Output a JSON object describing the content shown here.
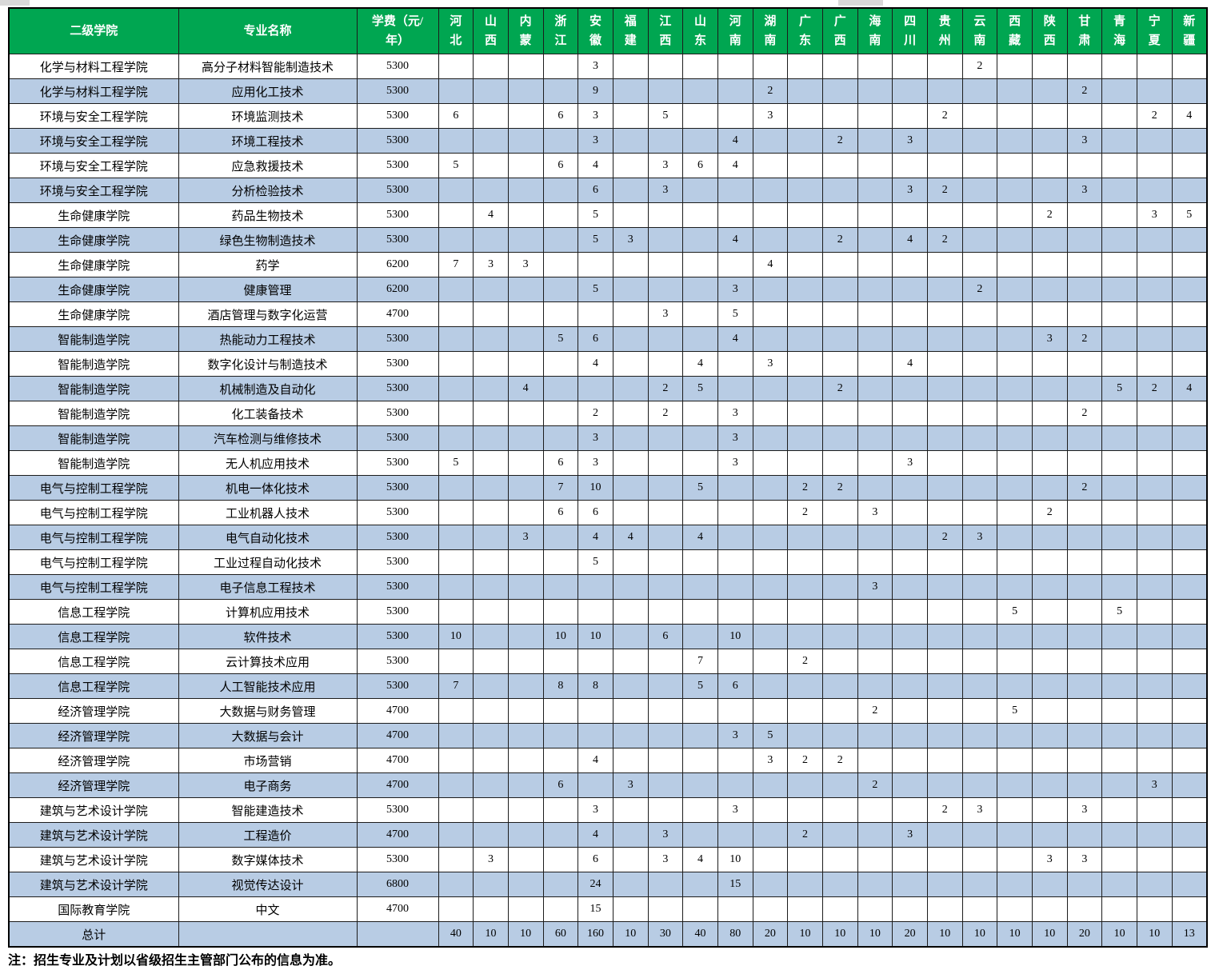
{
  "table": {
    "header": {
      "college": "二级学院",
      "major": "专业名称",
      "tuition": "学费（元/\n年）",
      "provinces": [
        "河北",
        "山西",
        "内蒙",
        "浙江",
        "安徽",
        "福建",
        "江西",
        "山东",
        "河南",
        "湖南",
        "广东",
        "广西",
        "海南",
        "四川",
        "贵州",
        "云南",
        "西藏",
        "陕西",
        "甘肃",
        "青海",
        "宁夏",
        "新疆"
      ]
    },
    "rows": [
      {
        "college": "化学与材料工程学院",
        "major": "高分子材料智能制造技术",
        "tuition": "5300",
        "values": [
          "",
          "",
          "",
          "",
          "3",
          "",
          "",
          "",
          "",
          "",
          "",
          "",
          "",
          "",
          "",
          "2",
          "",
          "",
          "",
          "",
          "",
          ""
        ]
      },
      {
        "college": "化学与材料工程学院",
        "major": "应用化工技术",
        "tuition": "5300",
        "values": [
          "",
          "",
          "",
          "",
          "9",
          "",
          "",
          "",
          "",
          "2",
          "",
          "",
          "",
          "",
          "",
          "",
          "",
          "",
          "2",
          "",
          "",
          ""
        ]
      },
      {
        "college": "环境与安全工程学院",
        "major": "环境监测技术",
        "tuition": "5300",
        "values": [
          "6",
          "",
          "",
          "6",
          "3",
          "",
          "5",
          "",
          "",
          "3",
          "",
          "",
          "",
          "",
          "2",
          "",
          "",
          "",
          "",
          "",
          "2",
          "4"
        ]
      },
      {
        "college": "环境与安全工程学院",
        "major": "环境工程技术",
        "tuition": "5300",
        "values": [
          "",
          "",
          "",
          "",
          "3",
          "",
          "",
          "",
          "4",
          "",
          "",
          "2",
          "",
          "3",
          "",
          "",
          "",
          "",
          "3",
          "",
          "",
          ""
        ]
      },
      {
        "college": "环境与安全工程学院",
        "major": "应急救援技术",
        "tuition": "5300",
        "values": [
          "5",
          "",
          "",
          "6",
          "4",
          "",
          "3",
          "6",
          "4",
          "",
          "",
          "",
          "",
          "",
          "",
          "",
          "",
          "",
          "",
          "",
          "",
          ""
        ]
      },
      {
        "college": "环境与安全工程学院",
        "major": "分析检验技术",
        "tuition": "5300",
        "values": [
          "",
          "",
          "",
          "",
          "6",
          "",
          "3",
          "",
          "",
          "",
          "",
          "",
          "",
          "3",
          "2",
          "",
          "",
          "",
          "3",
          "",
          "",
          ""
        ]
      },
      {
        "college": "生命健康学院",
        "major": "药品生物技术",
        "tuition": "5300",
        "values": [
          "",
          "4",
          "",
          "",
          "5",
          "",
          "",
          "",
          "",
          "",
          "",
          "",
          "",
          "",
          "",
          "",
          "",
          "2",
          "",
          "",
          "3",
          "5"
        ]
      },
      {
        "college": "生命健康学院",
        "major": "绿色生物制造技术",
        "tuition": "5300",
        "values": [
          "",
          "",
          "",
          "",
          "5",
          "3",
          "",
          "",
          "4",
          "",
          "",
          "2",
          "",
          "4",
          "2",
          "",
          "",
          "",
          "",
          "",
          "",
          ""
        ]
      },
      {
        "college": "生命健康学院",
        "major": "药学",
        "tuition": "6200",
        "values": [
          "7",
          "3",
          "3",
          "",
          "",
          "",
          "",
          "",
          "",
          "4",
          "",
          "",
          "",
          "",
          "",
          "",
          "",
          "",
          "",
          "",
          "",
          ""
        ]
      },
      {
        "college": "生命健康学院",
        "major": "健康管理",
        "tuition": "6200",
        "values": [
          "",
          "",
          "",
          "",
          "5",
          "",
          "",
          "",
          "3",
          "",
          "",
          "",
          "",
          "",
          "",
          "2",
          "",
          "",
          "",
          "",
          "",
          ""
        ]
      },
      {
        "college": "生命健康学院",
        "major": "酒店管理与数字化运营",
        "tuition": "4700",
        "values": [
          "",
          "",
          "",
          "",
          "",
          "",
          "3",
          "",
          "5",
          "",
          "",
          "",
          "",
          "",
          "",
          "",
          "",
          "",
          "",
          "",
          "",
          ""
        ]
      },
      {
        "college": "智能制造学院",
        "major": "热能动力工程技术",
        "tuition": "5300",
        "values": [
          "",
          "",
          "",
          "5",
          "6",
          "",
          "",
          "",
          "4",
          "",
          "",
          "",
          "",
          "",
          "",
          "",
          "",
          "3",
          "2",
          "",
          "",
          ""
        ]
      },
      {
        "college": "智能制造学院",
        "major": "数字化设计与制造技术",
        "tuition": "5300",
        "values": [
          "",
          "",
          "",
          "",
          "4",
          "",
          "",
          "4",
          "",
          "3",
          "",
          "",
          "",
          "4",
          "",
          "",
          "",
          "",
          "",
          "",
          "",
          ""
        ]
      },
      {
        "college": "智能制造学院",
        "major": "机械制造及自动化",
        "tuition": "5300",
        "values": [
          "",
          "",
          "4",
          "",
          "",
          "",
          "2",
          "5",
          "",
          "",
          "",
          "2",
          "",
          "",
          "",
          "",
          "",
          "",
          "",
          "5",
          "2",
          "4"
        ]
      },
      {
        "college": "智能制造学院",
        "major": "化工装备技术",
        "tuition": "5300",
        "values": [
          "",
          "",
          "",
          "",
          "2",
          "",
          "2",
          "",
          "3",
          "",
          "",
          "",
          "",
          "",
          "",
          "",
          "",
          "",
          "2",
          "",
          "",
          ""
        ]
      },
      {
        "college": "智能制造学院",
        "major": "汽车检测与维修技术",
        "tuition": "5300",
        "values": [
          "",
          "",
          "",
          "",
          "3",
          "",
          "",
          "",
          "3",
          "",
          "",
          "",
          "",
          "",
          "",
          "",
          "",
          "",
          "",
          "",
          "",
          ""
        ]
      },
      {
        "college": "智能制造学院",
        "major": "无人机应用技术",
        "tuition": "5300",
        "values": [
          "5",
          "",
          "",
          "6",
          "3",
          "",
          "",
          "",
          "3",
          "",
          "",
          "",
          "",
          "3",
          "",
          "",
          "",
          "",
          "",
          "",
          "",
          ""
        ]
      },
      {
        "college": "电气与控制工程学院",
        "major": "机电一体化技术",
        "tuition": "5300",
        "values": [
          "",
          "",
          "",
          "7",
          "10",
          "",
          "",
          "5",
          "",
          "",
          "2",
          "2",
          "",
          "",
          "",
          "",
          "",
          "",
          "2",
          "",
          "",
          ""
        ]
      },
      {
        "college": "电气与控制工程学院",
        "major": "工业机器人技术",
        "tuition": "5300",
        "values": [
          "",
          "",
          "",
          "6",
          "6",
          "",
          "",
          "",
          "",
          "",
          "2",
          "",
          "3",
          "",
          "",
          "",
          "",
          "2",
          "",
          "",
          "",
          ""
        ]
      },
      {
        "college": "电气与控制工程学院",
        "major": "电气自动化技术",
        "tuition": "5300",
        "values": [
          "",
          "",
          "3",
          "",
          "4",
          "4",
          "",
          "4",
          "",
          "",
          "",
          "",
          "",
          "",
          "2",
          "3",
          "",
          "",
          "",
          "",
          "",
          ""
        ]
      },
      {
        "college": "电气与控制工程学院",
        "major": "工业过程自动化技术",
        "tuition": "5300",
        "values": [
          "",
          "",
          "",
          "",
          "5",
          "",
          "",
          "",
          "",
          "",
          "",
          "",
          "",
          "",
          "",
          "",
          "",
          "",
          "",
          "",
          "",
          ""
        ]
      },
      {
        "college": "电气与控制工程学院",
        "major": "电子信息工程技术",
        "tuition": "5300",
        "values": [
          "",
          "",
          "",
          "",
          "",
          "",
          "",
          "",
          "",
          "",
          "",
          "",
          "3",
          "",
          "",
          "",
          "",
          "",
          "",
          "",
          "",
          ""
        ]
      },
      {
        "college": "信息工程学院",
        "major": "计算机应用技术",
        "tuition": "5300",
        "values": [
          "",
          "",
          "",
          "",
          "",
          "",
          "",
          "",
          "",
          "",
          "",
          "",
          "",
          "",
          "",
          "",
          "5",
          "",
          "",
          "5",
          "",
          ""
        ]
      },
      {
        "college": "信息工程学院",
        "major": "软件技术",
        "tuition": "5300",
        "values": [
          "10",
          "",
          "",
          "10",
          "10",
          "",
          "6",
          "",
          "10",
          "",
          "",
          "",
          "",
          "",
          "",
          "",
          "",
          "",
          "",
          "",
          "",
          ""
        ]
      },
      {
        "college": "信息工程学院",
        "major": "云计算技术应用",
        "tuition": "5300",
        "values": [
          "",
          "",
          "",
          "",
          "",
          "",
          "",
          "7",
          "",
          "",
          "2",
          "",
          "",
          "",
          "",
          "",
          "",
          "",
          "",
          "",
          "",
          ""
        ]
      },
      {
        "college": "信息工程学院",
        "major": "人工智能技术应用",
        "tuition": "5300",
        "values": [
          "7",
          "",
          "",
          "8",
          "8",
          "",
          "",
          "5",
          "6",
          "",
          "",
          "",
          "",
          "",
          "",
          "",
          "",
          "",
          "",
          "",
          "",
          ""
        ]
      },
      {
        "college": "经济管理学院",
        "major": "大数据与财务管理",
        "tuition": "4700",
        "values": [
          "",
          "",
          "",
          "",
          "",
          "",
          "",
          "",
          "",
          "",
          "",
          "",
          "2",
          "",
          "",
          "",
          "5",
          "",
          "",
          "",
          "",
          ""
        ]
      },
      {
        "college": "经济管理学院",
        "major": "大数据与会计",
        "tuition": "4700",
        "values": [
          "",
          "",
          "",
          "",
          "",
          "",
          "",
          "",
          "3",
          "5",
          "",
          "",
          "",
          "",
          "",
          "",
          "",
          "",
          "",
          "",
          "",
          ""
        ]
      },
      {
        "college": "经济管理学院",
        "major": "市场营销",
        "tuition": "4700",
        "values": [
          "",
          "",
          "",
          "",
          "4",
          "",
          "",
          "",
          "",
          "3",
          "2",
          "2",
          "",
          "",
          "",
          "",
          "",
          "",
          "",
          "",
          "",
          ""
        ]
      },
      {
        "college": "经济管理学院",
        "major": "电子商务",
        "tuition": "4700",
        "values": [
          "",
          "",
          "",
          "6",
          "",
          "3",
          "",
          "",
          "",
          "",
          "",
          "",
          "2",
          "",
          "",
          "",
          "",
          "",
          "",
          "",
          "3",
          ""
        ]
      },
      {
        "college": "建筑与艺术设计学院",
        "major": "智能建造技术",
        "tuition": "5300",
        "values": [
          "",
          "",
          "",
          "",
          "3",
          "",
          "",
          "",
          "3",
          "",
          "",
          "",
          "",
          "",
          "2",
          "3",
          "",
          "",
          "3",
          "",
          "",
          ""
        ]
      },
      {
        "college": "建筑与艺术设计学院",
        "major": "工程造价",
        "tuition": "4700",
        "values": [
          "",
          "",
          "",
          "",
          "4",
          "",
          "3",
          "",
          "",
          "",
          "2",
          "",
          "",
          "3",
          "",
          "",
          "",
          "",
          "",
          "",
          "",
          ""
        ]
      },
      {
        "college": "建筑与艺术设计学院",
        "major": "数字媒体技术",
        "tuition": "5300",
        "values": [
          "",
          "3",
          "",
          "",
          "6",
          "",
          "3",
          "4",
          "10",
          "",
          "",
          "",
          "",
          "",
          "",
          "",
          "",
          "3",
          "3",
          "",
          "",
          ""
        ]
      },
      {
        "college": "建筑与艺术设计学院",
        "major": "视觉传达设计",
        "tuition": "6800",
        "values": [
          "",
          "",
          "",
          "",
          "24",
          "",
          "",
          "",
          "15",
          "",
          "",
          "",
          "",
          "",
          "",
          "",
          "",
          "",
          "",
          "",
          "",
          ""
        ]
      },
      {
        "college": "国际教育学院",
        "major": "中文",
        "tuition": "4700",
        "values": [
          "",
          "",
          "",
          "",
          "15",
          "",
          "",
          "",
          "",
          "",
          "",
          "",
          "",
          "",
          "",
          "",
          "",
          "",
          "",
          "",
          "",
          ""
        ]
      }
    ],
    "total": {
      "label": "总计",
      "values": [
        "40",
        "10",
        "10",
        "60",
        "160",
        "10",
        "30",
        "40",
        "80",
        "20",
        "10",
        "10",
        "10",
        "20",
        "10",
        "10",
        "10",
        "10",
        "20",
        "10",
        "10",
        "13"
      ]
    }
  },
  "note": "注：招生专业及计划以省级招生主管部门公布的信息为准。",
  "colors": {
    "header_bg": "#00a651",
    "header_text": "#ffffff",
    "alt_row_bg": "#b8cce4",
    "border": "#1c1c1c"
  }
}
